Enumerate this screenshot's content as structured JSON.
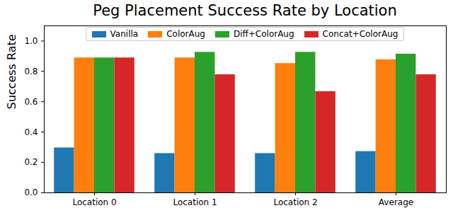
{
  "chart_data": {
    "type": "bar",
    "title": "Peg Placement Success Rate by Location",
    "y_label": "Success Rate",
    "categories": [
      "Location 0",
      "Location 1",
      "Location 2",
      "Average"
    ],
    "series": [
      {
        "name": "Vanilla",
        "color": "#1f77b4",
        "values": [
          0.296,
          0.259,
          0.259,
          0.272
        ]
      },
      {
        "name": "ColorAug",
        "color": "#ff7f0e",
        "values": [
          0.889,
          0.889,
          0.852,
          0.877
        ]
      },
      {
        "name": "Diff+ColorAug",
        "color": "#2ca02c",
        "values": [
          0.889,
          0.926,
          0.926,
          0.914
        ]
      },
      {
        "name": "Concat+ColorAug",
        "color": "#d62728",
        "values": [
          0.889,
          0.778,
          0.667,
          0.778
        ]
      }
    ],
    "ylim": [
      0,
      1.1
    ],
    "yticks": [
      {
        "value": 0,
        "label": "0.0"
      },
      {
        "value": 0.2,
        "label": "0.2"
      },
      {
        "value": 0.4,
        "label": "0.4"
      },
      {
        "value": 0.6,
        "label": "0.6"
      },
      {
        "value": 0.8,
        "label": "0.8"
      },
      {
        "value": 1.0,
        "label": "1.0"
      }
    ],
    "legend": "upper center",
    "grid": false
  }
}
